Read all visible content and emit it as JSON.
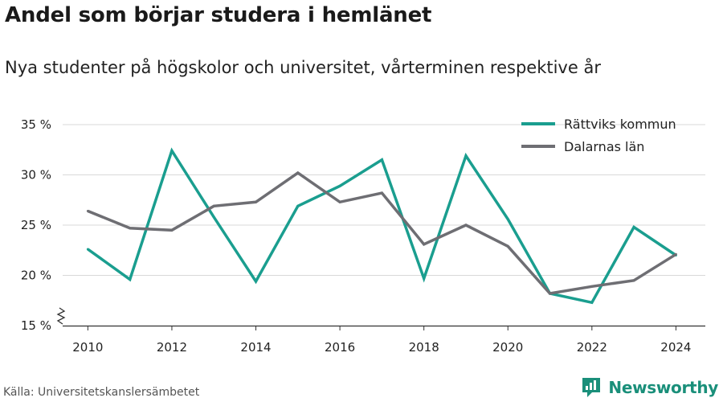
{
  "header": {
    "title": "Andel som börjar studera i hemlänet",
    "subtitle": "Nya studenter på högskolor och universitet, vårterminen respektive år"
  },
  "footer": {
    "source": "Källa: Universitetskanslersämbetet",
    "brand": "Newsworthy",
    "brand_color": "#1a8f7a"
  },
  "chart_data": {
    "type": "line",
    "title": "Andel som börjar studera i hemlänet",
    "subtitle": "Nya studenter på högskolor och universitet, vårterminen respektive år",
    "xlabel": "",
    "ylabel": "",
    "x": [
      2010,
      2011,
      2012,
      2013,
      2014,
      2015,
      2016,
      2017,
      2018,
      2019,
      2020,
      2021,
      2022,
      2023,
      2024
    ],
    "x_ticks": [
      2010,
      2012,
      2014,
      2016,
      2018,
      2020,
      2022,
      2024
    ],
    "y_ticks": [
      15,
      20,
      25,
      30,
      35
    ],
    "y_tick_labels": [
      "15 %",
      "20 %",
      "25 %",
      "30 %",
      "35 %"
    ],
    "ylim": [
      15,
      35
    ],
    "grid": "horizontal",
    "axis_break": true,
    "legend_position": "top-right",
    "series": [
      {
        "name": "Rättviks kommun",
        "color": "#1a9e8f",
        "values": [
          22.6,
          19.6,
          32.4,
          25.8,
          19.4,
          26.9,
          28.9,
          31.5,
          19.7,
          31.9,
          25.6,
          18.2,
          17.3,
          24.8,
          22.0
        ]
      },
      {
        "name": "Dalarnas län",
        "color": "#6e6e73",
        "values": [
          26.4,
          24.7,
          24.5,
          26.9,
          27.3,
          30.2,
          27.3,
          28.2,
          23.1,
          25.0,
          22.9,
          18.2,
          18.9,
          19.5,
          22.1
        ]
      }
    ]
  }
}
